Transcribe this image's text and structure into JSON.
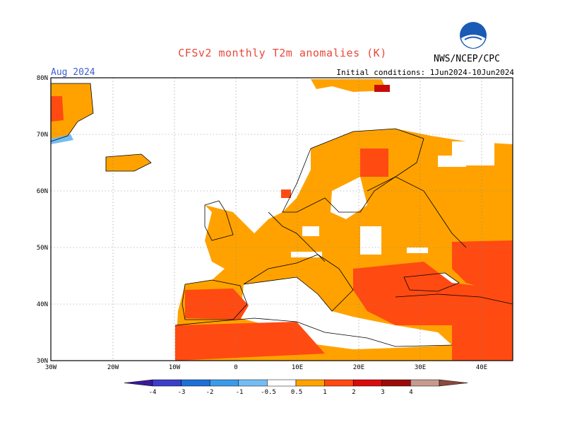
{
  "title": "CFSv2 monthly T2m anomalies (K)",
  "month": "Aug 2024",
  "initial_conditions": "Initial conditions: 1Jun2024-10Jun2024",
  "agency": "NWS/NCEP/CPC",
  "logo_text": "NOAA",
  "lat_labels": [
    "80N",
    "70N",
    "60N",
    "50N",
    "40N",
    "30N"
  ],
  "lon_labels": [
    "30W",
    "20W",
    "10W",
    "0",
    "10E",
    "20E",
    "30E",
    "40E"
  ],
  "colorbar": {
    "tick_labels": [
      "-4",
      "-3",
      "-2",
      "-1",
      "-0.5",
      "0.5",
      "1",
      "2",
      "3",
      "4"
    ],
    "colors": [
      "#3b1a9c",
      "#3c3fc6",
      "#1f6fd6",
      "#3c9be8",
      "#74bdf2",
      "#ffffff",
      "#ffa200",
      "#ff4a12",
      "#d80c0c",
      "#9c0b0b",
      "#c79a8e",
      "#8a4a3c"
    ]
  },
  "map_colors": {
    "land_outline": "#000000",
    "grid": "#888888",
    "anomaly_0_5_to_1": "#ffa200",
    "anomaly_1_to_2": "#ff4a12",
    "anomaly_2_to_3": "#c80c0c",
    "anomaly_neg_1_to_neg_0_5": "#74bdf2"
  }
}
